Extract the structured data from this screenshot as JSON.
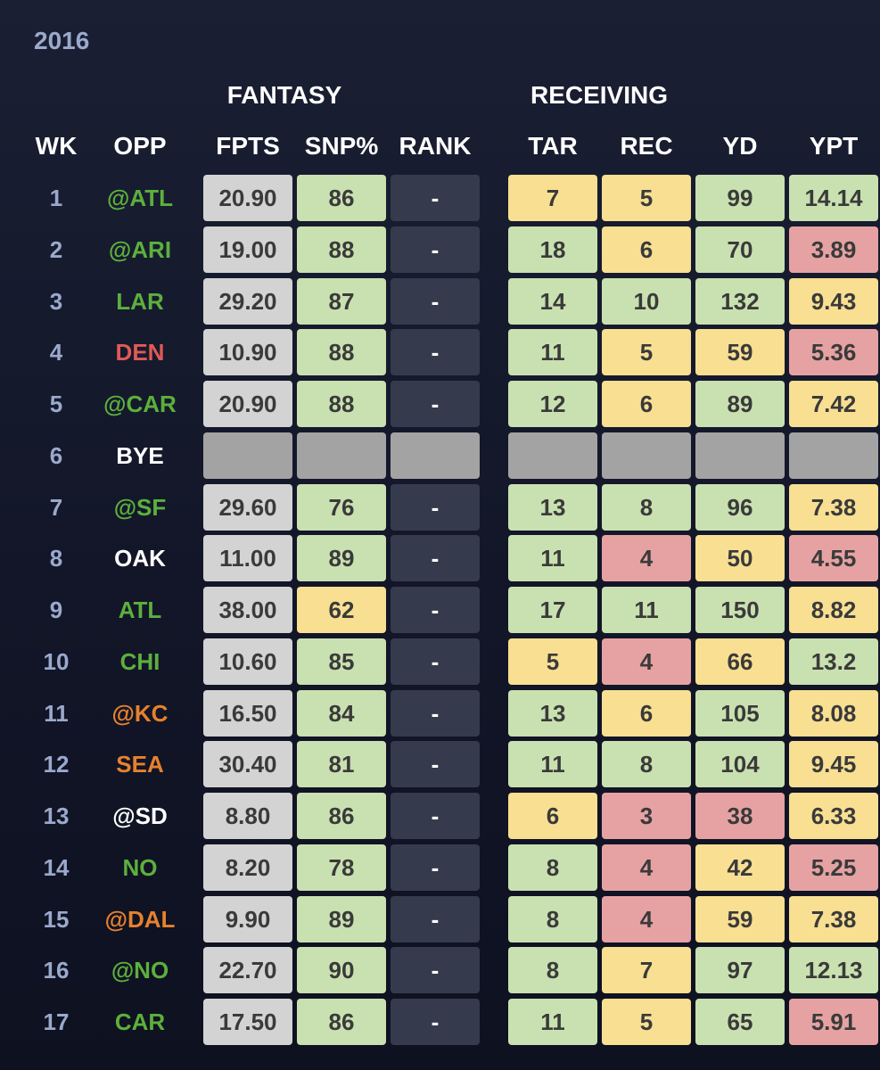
{
  "year": "2016",
  "groups": {
    "fantasy": "FANTASY",
    "receiving": "RECEIVING"
  },
  "headers": {
    "wk": "WK",
    "opp": "OPP",
    "fpts": "FPTS",
    "snp": "SNP%",
    "rank": "RANK",
    "tar": "TAR",
    "rec": "REC",
    "yd": "YD",
    "ypt": "YPT"
  },
  "colors": {
    "opp_green": "#5cb03c",
    "opp_red": "#e05a57",
    "opp_orange": "#e8812d",
    "opp_white": "#ffffff",
    "good": "#c9e1b0",
    "mid": "#f8df92",
    "bad": "#e6a2a2"
  },
  "rows": [
    {
      "wk": "1",
      "opp": "@ATL",
      "opp_color": "green",
      "fpts": "20.90",
      "snp": "86",
      "snp_c": "g",
      "rank": "-",
      "tar": "7",
      "tar_c": "y",
      "rec": "5",
      "rec_c": "y",
      "yd": "99",
      "yd_c": "g",
      "ypt": "14.14",
      "ypt_c": "g"
    },
    {
      "wk": "2",
      "opp": "@ARI",
      "opp_color": "green",
      "fpts": "19.00",
      "snp": "88",
      "snp_c": "g",
      "rank": "-",
      "tar": "18",
      "tar_c": "g",
      "rec": "6",
      "rec_c": "y",
      "yd": "70",
      "yd_c": "g",
      "ypt": "3.89",
      "ypt_c": "r"
    },
    {
      "wk": "3",
      "opp": "LAR",
      "opp_color": "green",
      "fpts": "29.20",
      "snp": "87",
      "snp_c": "g",
      "rank": "-",
      "tar": "14",
      "tar_c": "g",
      "rec": "10",
      "rec_c": "g",
      "yd": "132",
      "yd_c": "g",
      "ypt": "9.43",
      "ypt_c": "y"
    },
    {
      "wk": "4",
      "opp": "DEN",
      "opp_color": "red",
      "fpts": "10.90",
      "snp": "88",
      "snp_c": "g",
      "rank": "-",
      "tar": "11",
      "tar_c": "g",
      "rec": "5",
      "rec_c": "y",
      "yd": "59",
      "yd_c": "y",
      "ypt": "5.36",
      "ypt_c": "r"
    },
    {
      "wk": "5",
      "opp": "@CAR",
      "opp_color": "green",
      "fpts": "20.90",
      "snp": "88",
      "snp_c": "g",
      "rank": "-",
      "tar": "12",
      "tar_c": "g",
      "rec": "6",
      "rec_c": "y",
      "yd": "89",
      "yd_c": "g",
      "ypt": "7.42",
      "ypt_c": "y"
    },
    {
      "wk": "6",
      "opp": "BYE",
      "opp_color": "white",
      "bye": true
    },
    {
      "wk": "7",
      "opp": "@SF",
      "opp_color": "green",
      "fpts": "29.60",
      "snp": "76",
      "snp_c": "g",
      "rank": "-",
      "tar": "13",
      "tar_c": "g",
      "rec": "8",
      "rec_c": "g",
      "yd": "96",
      "yd_c": "g",
      "ypt": "7.38",
      "ypt_c": "y"
    },
    {
      "wk": "8",
      "opp": "OAK",
      "opp_color": "white",
      "fpts": "11.00",
      "snp": "89",
      "snp_c": "g",
      "rank": "-",
      "tar": "11",
      "tar_c": "g",
      "rec": "4",
      "rec_c": "r",
      "yd": "50",
      "yd_c": "y",
      "ypt": "4.55",
      "ypt_c": "r"
    },
    {
      "wk": "9",
      "opp": "ATL",
      "opp_color": "green",
      "fpts": "38.00",
      "snp": "62",
      "snp_c": "y",
      "rank": "-",
      "tar": "17",
      "tar_c": "g",
      "rec": "11",
      "rec_c": "g",
      "yd": "150",
      "yd_c": "g",
      "ypt": "8.82",
      "ypt_c": "y"
    },
    {
      "wk": "10",
      "opp": "CHI",
      "opp_color": "green",
      "fpts": "10.60",
      "snp": "85",
      "snp_c": "g",
      "rank": "-",
      "tar": "5",
      "tar_c": "y",
      "rec": "4",
      "rec_c": "r",
      "yd": "66",
      "yd_c": "y",
      "ypt": "13.2",
      "ypt_c": "g"
    },
    {
      "wk": "11",
      "opp": "@KC",
      "opp_color": "orange",
      "fpts": "16.50",
      "snp": "84",
      "snp_c": "g",
      "rank": "-",
      "tar": "13",
      "tar_c": "g",
      "rec": "6",
      "rec_c": "y",
      "yd": "105",
      "yd_c": "g",
      "ypt": "8.08",
      "ypt_c": "y"
    },
    {
      "wk": "12",
      "opp": "SEA",
      "opp_color": "orange",
      "fpts": "30.40",
      "snp": "81",
      "snp_c": "g",
      "rank": "-",
      "tar": "11",
      "tar_c": "g",
      "rec": "8",
      "rec_c": "g",
      "yd": "104",
      "yd_c": "g",
      "ypt": "9.45",
      "ypt_c": "y"
    },
    {
      "wk": "13",
      "opp": "@SD",
      "opp_color": "white",
      "fpts": "8.80",
      "snp": "86",
      "snp_c": "g",
      "rank": "-",
      "tar": "6",
      "tar_c": "y",
      "rec": "3",
      "rec_c": "r",
      "yd": "38",
      "yd_c": "r",
      "ypt": "6.33",
      "ypt_c": "y"
    },
    {
      "wk": "14",
      "opp": "NO",
      "opp_color": "green",
      "fpts": "8.20",
      "snp": "78",
      "snp_c": "g",
      "rank": "-",
      "tar": "8",
      "tar_c": "g",
      "rec": "4",
      "rec_c": "r",
      "yd": "42",
      "yd_c": "y",
      "ypt": "5.25",
      "ypt_c": "r"
    },
    {
      "wk": "15",
      "opp": "@DAL",
      "opp_color": "orange",
      "fpts": "9.90",
      "snp": "89",
      "snp_c": "g",
      "rank": "-",
      "tar": "8",
      "tar_c": "g",
      "rec": "4",
      "rec_c": "r",
      "yd": "59",
      "yd_c": "y",
      "ypt": "7.38",
      "ypt_c": "y"
    },
    {
      "wk": "16",
      "opp": "@NO",
      "opp_color": "green",
      "fpts": "22.70",
      "snp": "90",
      "snp_c": "g",
      "rank": "-",
      "tar": "8",
      "tar_c": "g",
      "rec": "7",
      "rec_c": "y",
      "yd": "97",
      "yd_c": "g",
      "ypt": "12.13",
      "ypt_c": "g"
    },
    {
      "wk": "17",
      "opp": "CAR",
      "opp_color": "green",
      "fpts": "17.50",
      "snp": "86",
      "snp_c": "g",
      "rank": "-",
      "tar": "11",
      "tar_c": "g",
      "rec": "5",
      "rec_c": "y",
      "yd": "65",
      "yd_c": "g",
      "ypt": "5.91",
      "ypt_c": "r"
    }
  ]
}
